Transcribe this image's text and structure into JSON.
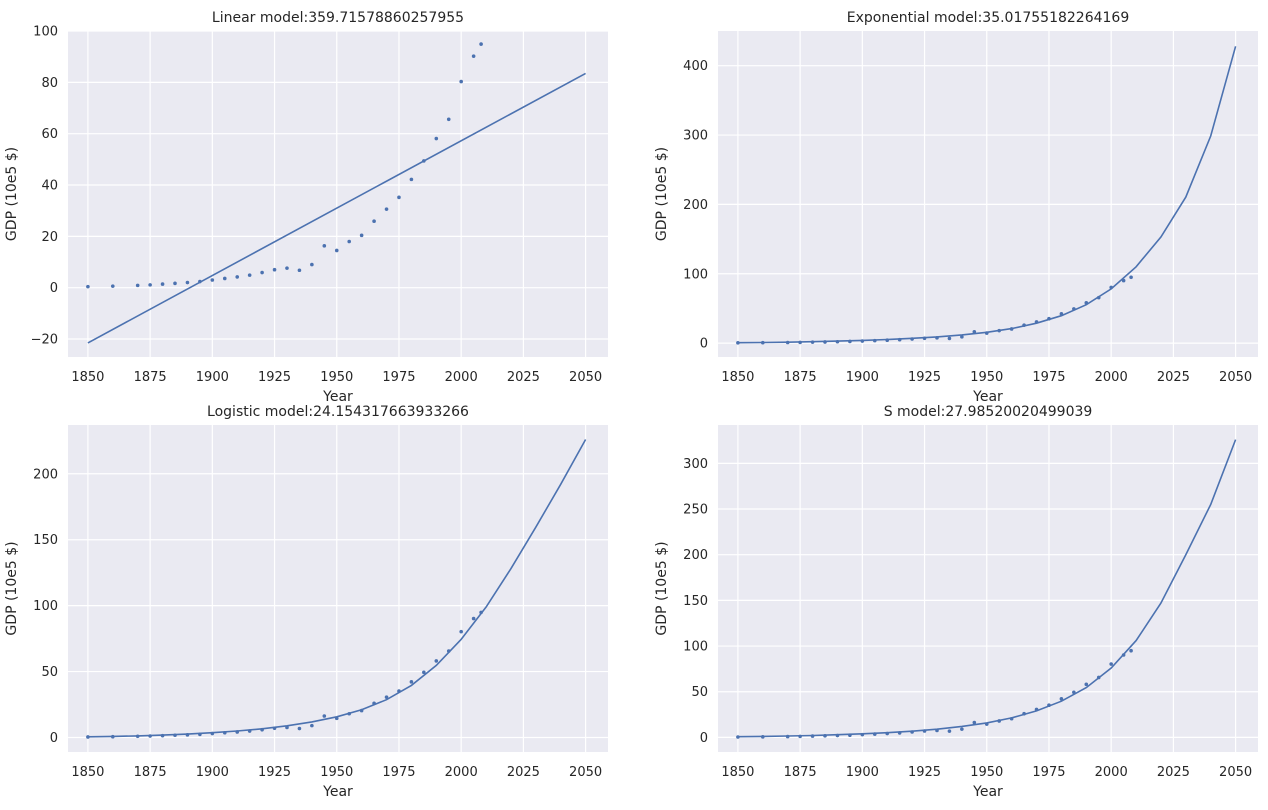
{
  "chart_data": [
    {
      "type": "scatter",
      "title": "Linear model:359.71578860257955",
      "xlabel": "Year",
      "ylabel": "GDP (10e5 $)",
      "xlim": [
        1842,
        2059
      ],
      "ylim": [
        -27,
        100
      ],
      "xticks": [
        1850,
        1875,
        1900,
        1925,
        1950,
        1975,
        2000,
        2025,
        2050
      ],
      "yticks": [
        -20,
        0,
        20,
        40,
        60,
        80,
        100
      ],
      "grid": true,
      "legend": "none",
      "series": [
        {
          "kind": "points",
          "x": [
            1850,
            1860,
            1870,
            1875,
            1880,
            1885,
            1890,
            1895,
            1900,
            1905,
            1910,
            1915,
            1920,
            1925,
            1930,
            1935,
            1940,
            1945,
            1950,
            1955,
            1960,
            1965,
            1970,
            1975,
            1980,
            1985,
            1990,
            1995,
            2000,
            2005,
            2008
          ],
          "y": [
            0.4,
            0.6,
            0.9,
            1.1,
            1.4,
            1.7,
            2.0,
            2.4,
            3.0,
            3.6,
            4.2,
            4.9,
            5.9,
            7.0,
            7.6,
            6.8,
            9.0,
            16.3,
            14.5,
            18.0,
            20.4,
            25.9,
            30.6,
            35.2,
            42.2,
            49.4,
            58.1,
            65.6,
            80.3,
            90.2,
            94.9
          ]
        },
        {
          "kind": "line",
          "x": [
            1850,
            2050
          ],
          "y": [
            -21.5,
            83.5
          ]
        }
      ]
    },
    {
      "type": "scatter",
      "title": "Exponential model:35.01755182264169",
      "xlabel": "Year",
      "ylabel": "GDP (10e5 $)",
      "xlim": [
        1842,
        2059
      ],
      "ylim": [
        -20,
        450
      ],
      "xticks": [
        1850,
        1875,
        1900,
        1925,
        1950,
        1975,
        2000,
        2025,
        2050
      ],
      "yticks": [
        0,
        100,
        200,
        300,
        400
      ],
      "grid": true,
      "legend": "none",
      "series": [
        {
          "kind": "points",
          "x": [
            1850,
            1860,
            1870,
            1875,
            1880,
            1885,
            1890,
            1895,
            1900,
            1905,
            1910,
            1915,
            1920,
            1925,
            1930,
            1935,
            1940,
            1945,
            1950,
            1955,
            1960,
            1965,
            1970,
            1975,
            1980,
            1985,
            1990,
            1995,
            2000,
            2005,
            2008
          ],
          "y": [
            0.4,
            0.6,
            0.9,
            1.1,
            1.4,
            1.7,
            2.0,
            2.4,
            3.0,
            3.6,
            4.2,
            4.9,
            5.9,
            7.0,
            7.6,
            6.8,
            9.0,
            16.3,
            14.5,
            18.0,
            20.4,
            25.9,
            30.6,
            35.2,
            42.2,
            49.4,
            58.1,
            65.6,
            80.3,
            90.2,
            94.9
          ]
        },
        {
          "kind": "line",
          "x": [
            1850,
            1860,
            1870,
            1880,
            1890,
            1900,
            1910,
            1920,
            1930,
            1940,
            1950,
            1960,
            1970,
            1980,
            1990,
            2000,
            2010,
            2020,
            2030,
            2040,
            2050
          ],
          "y": [
            0.6,
            0.9,
            1.4,
            2.1,
            2.9,
            4.0,
            5.3,
            6.9,
            9.0,
            11.8,
            15.6,
            21.0,
            28.7,
            39.6,
            55.4,
            78.2,
            110.0,
            153.0,
            210.5,
            298.6,
            428.0
          ]
        }
      ]
    },
    {
      "type": "scatter",
      "title": "Logistic model:24.154317663933266",
      "xlabel": "Year",
      "ylabel": "GDP (10e5 $)",
      "xlim": [
        1842,
        2059
      ],
      "ylim": [
        -11,
        237
      ],
      "xticks": [
        1850,
        1875,
        1900,
        1925,
        1950,
        1975,
        2000,
        2025,
        2050
      ],
      "yticks": [
        0,
        50,
        100,
        150,
        200
      ],
      "grid": true,
      "legend": "none",
      "series": [
        {
          "kind": "points",
          "x": [
            1850,
            1860,
            1870,
            1875,
            1880,
            1885,
            1890,
            1895,
            1900,
            1905,
            1910,
            1915,
            1920,
            1925,
            1930,
            1935,
            1940,
            1945,
            1950,
            1955,
            1960,
            1965,
            1970,
            1975,
            1980,
            1985,
            1990,
            1995,
            2000,
            2005,
            2008
          ],
          "y": [
            0.4,
            0.6,
            0.9,
            1.1,
            1.4,
            1.7,
            2.0,
            2.4,
            3.0,
            3.6,
            4.2,
            4.9,
            5.9,
            7.0,
            7.6,
            6.8,
            9.0,
            16.3,
            14.5,
            18.0,
            20.4,
            25.9,
            30.6,
            35.2,
            42.2,
            49.4,
            58.1,
            65.6,
            80.3,
            90.2,
            94.9
          ]
        },
        {
          "kind": "line",
          "x": [
            1850,
            1860,
            1870,
            1880,
            1890,
            1900,
            1910,
            1920,
            1930,
            1940,
            1950,
            1960,
            1970,
            1980,
            1990,
            2000,
            2010,
            2020,
            2030,
            2040,
            2050
          ],
          "y": [
            0.5,
            0.8,
            1.2,
            1.8,
            2.6,
            3.6,
            4.9,
            6.6,
            8.9,
            11.8,
            15.7,
            21.0,
            28.7,
            39.5,
            54.7,
            74.5,
            99.0,
            128.0,
            159.5,
            192.0,
            226.0
          ]
        }
      ]
    },
    {
      "type": "scatter",
      "title": "S model:27.98520020499039",
      "xlabel": "Year",
      "ylabel": "GDP (10e5 $)",
      "xlim": [
        1842,
        2059
      ],
      "ylim": [
        -16,
        342
      ],
      "xticks": [
        1850,
        1875,
        1900,
        1925,
        1950,
        1975,
        2000,
        2025,
        2050
      ],
      "yticks": [
        0,
        50,
        100,
        150,
        200,
        250,
        300
      ],
      "grid": true,
      "legend": "none",
      "series": [
        {
          "kind": "points",
          "x": [
            1850,
            1860,
            1870,
            1875,
            1880,
            1885,
            1890,
            1895,
            1900,
            1905,
            1910,
            1915,
            1920,
            1925,
            1930,
            1935,
            1940,
            1945,
            1950,
            1955,
            1960,
            1965,
            1970,
            1975,
            1980,
            1985,
            1990,
            1995,
            2000,
            2005,
            2008
          ],
          "y": [
            0.4,
            0.6,
            0.9,
            1.1,
            1.4,
            1.7,
            2.0,
            2.4,
            3.0,
            3.6,
            4.2,
            4.9,
            5.9,
            7.0,
            7.6,
            6.8,
            9.0,
            16.3,
            14.5,
            18.0,
            20.4,
            25.9,
            30.6,
            35.2,
            42.2,
            49.4,
            58.1,
            65.6,
            80.3,
            90.2,
            94.9
          ]
        },
        {
          "kind": "line",
          "x": [
            1850,
            1860,
            1870,
            1880,
            1890,
            1900,
            1910,
            1920,
            1930,
            1940,
            1950,
            1960,
            1970,
            1980,
            1990,
            2000,
            2010,
            2020,
            2030,
            2040,
            2050
          ],
          "y": [
            0.8,
            1.1,
            1.5,
            2.1,
            2.9,
            3.9,
            5.1,
            6.8,
            9.0,
            12.0,
            15.9,
            21.3,
            29.0,
            39.6,
            54.5,
            76.0,
            106.0,
            147.0,
            200.0,
            255.0,
            326.0
          ]
        }
      ]
    }
  ]
}
